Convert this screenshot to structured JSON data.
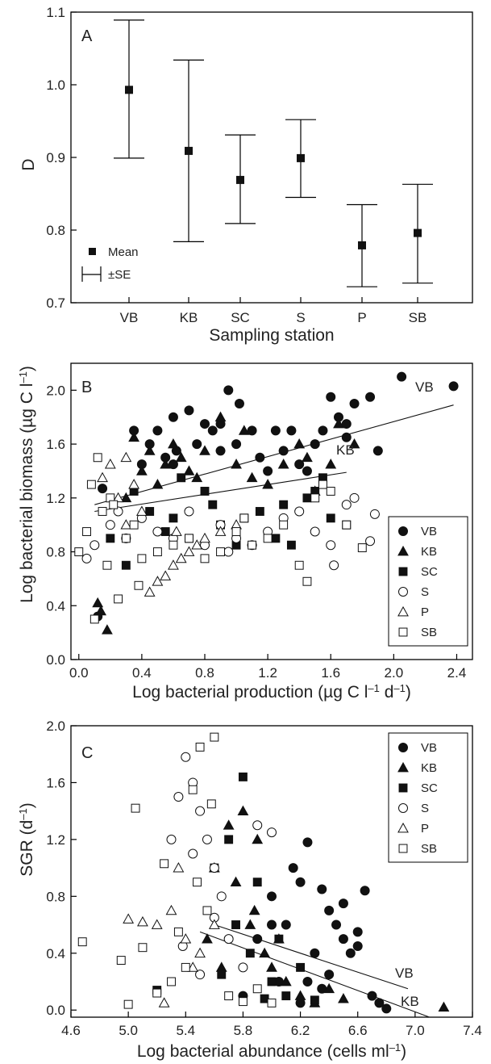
{
  "chart_data": [
    {
      "type": "errorbar",
      "panel": "A",
      "xlabel": "Sampling station",
      "ylabel": "D",
      "ylim": [
        0.7,
        1.1
      ],
      "yticks": [
        "0.7",
        "0.8",
        "0.9",
        "1.0",
        "1.1"
      ],
      "categories": [
        "VB",
        "KB",
        "SC",
        "S",
        "P",
        "SB"
      ],
      "means": [
        0.993,
        0.909,
        0.869,
        0.899,
        0.779,
        0.796
      ],
      "lower": [
        0.899,
        0.784,
        0.809,
        0.845,
        0.722,
        0.727
      ],
      "upper": [
        1.089,
        1.034,
        0.931,
        0.952,
        0.835,
        0.863
      ],
      "legend": {
        "mean": "Mean",
        "se": "±SE"
      }
    },
    {
      "type": "scatter",
      "panel": "B",
      "xlabel_pre": "Log bacterial production (µg C l",
      "xlabel_sup1": "–1",
      "xlabel_mid": " d",
      "xlabel_sup2": "–1",
      "xlabel_post": ")",
      "ylabel_pre": "Log bacterial biomass (µg C l",
      "ylabel_sup": "–1",
      "ylabel_post": ")",
      "xlim": [
        -0.05,
        2.5
      ],
      "ylim": [
        0.0,
        2.2
      ],
      "xticks": [
        "0.0",
        "0.4",
        "0.8",
        "1.2",
        "1.6",
        "2.0",
        "2.4"
      ],
      "yticks": [
        "0.0",
        "0.4",
        "0.8",
        "1.2",
        "1.6",
        "2.0"
      ],
      "legend": [
        "VB",
        "KB",
        "SC",
        "S",
        "P",
        "SB"
      ],
      "regression_lines": [
        {
          "name": "VB",
          "x": [
            0.1,
            2.38
          ],
          "y": [
            1.15,
            1.89
          ]
        },
        {
          "name": "KB",
          "x": [
            0.1,
            1.7
          ],
          "y": [
            1.1,
            1.39
          ]
        }
      ],
      "series": [
        {
          "name": "VB",
          "x": [
            0.12,
            0.15,
            0.35,
            0.45,
            0.5,
            0.55,
            0.6,
            0.62,
            0.7,
            0.75,
            0.8,
            0.85,
            0.9,
            0.95,
            1.0,
            1.02,
            1.1,
            1.15,
            1.25,
            1.3,
            1.35,
            1.4,
            1.5,
            1.55,
            1.6,
            1.65,
            1.7,
            1.75,
            1.85,
            1.9,
            2.05,
            2.38,
            0.4,
            0.6,
            0.9,
            1.2,
            1.45,
            1.7
          ],
          "y": [
            0.32,
            1.27,
            1.7,
            1.6,
            1.7,
            1.5,
            1.8,
            1.55,
            1.85,
            1.6,
            1.75,
            1.7,
            1.75,
            2.0,
            1.6,
            1.9,
            1.7,
            1.5,
            1.7,
            1.55,
            1.7,
            1.45,
            1.6,
            1.7,
            1.95,
            1.8,
            1.65,
            1.9,
            1.95,
            1.55,
            2.1,
            2.03,
            1.45,
            1.45,
            1.55,
            1.4,
            1.4,
            1.75
          ]
        },
        {
          "name": "KB",
          "x": [
            0.12,
            0.14,
            0.18,
            0.3,
            0.4,
            0.45,
            0.5,
            0.55,
            0.6,
            0.65,
            0.7,
            0.8,
            0.9,
            1.0,
            1.1,
            1.2,
            1.3,
            1.4,
            1.5,
            1.6,
            1.65,
            1.75,
            0.35,
            0.75,
            1.05,
            1.45
          ],
          "y": [
            0.42,
            0.36,
            0.22,
            1.2,
            1.4,
            1.55,
            1.3,
            1.45,
            1.6,
            1.5,
            1.4,
            1.55,
            1.8,
            1.45,
            1.35,
            1.3,
            1.45,
            1.6,
            1.25,
            1.45,
            1.75,
            1.6,
            1.65,
            1.35,
            1.7,
            1.5
          ]
        },
        {
          "name": "SC",
          "x": [
            0.2,
            0.35,
            0.45,
            0.55,
            0.6,
            0.65,
            0.7,
            0.8,
            0.9,
            1.0,
            1.05,
            1.15,
            1.25,
            1.35,
            1.45,
            1.5,
            1.55,
            1.6,
            1.7,
            0.3,
            0.85,
            1.3
          ],
          "y": [
            0.9,
            1.25,
            1.1,
            0.95,
            1.05,
            1.35,
            0.9,
            1.25,
            1.0,
            0.85,
            1.05,
            1.1,
            0.9,
            0.85,
            1.2,
            1.25,
            1.35,
            1.05,
            1.0,
            0.7,
            1.15,
            1.15
          ]
        },
        {
          "name": "S",
          "x": [
            0.05,
            0.1,
            0.2,
            0.3,
            0.4,
            0.5,
            0.6,
            0.7,
            0.8,
            0.9,
            1.0,
            1.1,
            1.2,
            1.3,
            1.4,
            1.5,
            1.6,
            1.7,
            1.75,
            1.85,
            1.88,
            1.62,
            0.25,
            0.95
          ],
          "y": [
            0.75,
            0.85,
            1.0,
            0.9,
            1.05,
            0.95,
            0.9,
            1.1,
            0.85,
            1.0,
            0.9,
            0.85,
            0.95,
            1.05,
            1.1,
            0.95,
            0.85,
            1.15,
            1.2,
            0.88,
            1.08,
            0.7,
            1.1,
            0.8
          ]
        },
        {
          "name": "P",
          "x": [
            0.15,
            0.2,
            0.25,
            0.3,
            0.35,
            0.45,
            0.5,
            0.55,
            0.6,
            0.65,
            0.7,
            0.75,
            0.8,
            0.9,
            1.0,
            0.4,
            0.3,
            0.62
          ],
          "y": [
            1.35,
            1.45,
            1.2,
            1.5,
            1.3,
            0.5,
            0.58,
            0.62,
            0.7,
            0.75,
            0.8,
            0.85,
            0.9,
            0.95,
            1.0,
            1.1,
            1.0,
            0.95
          ]
        },
        {
          "name": "SB",
          "x": [
            0.0,
            0.05,
            0.08,
            0.1,
            0.15,
            0.18,
            0.2,
            0.25,
            0.3,
            0.35,
            0.4,
            0.5,
            0.6,
            0.7,
            0.8,
            0.9,
            1.0,
            1.1,
            1.2,
            1.3,
            1.4,
            1.45,
            1.5,
            1.55,
            1.6,
            1.7,
            1.8,
            0.12,
            0.22,
            0.38,
            1.05
          ],
          "y": [
            0.8,
            0.95,
            1.3,
            0.3,
            1.1,
            0.7,
            1.2,
            0.45,
            0.9,
            1.0,
            0.75,
            0.8,
            0.85,
            0.9,
            0.75,
            0.8,
            0.95,
            0.85,
            0.9,
            1.0,
            0.7,
            0.58,
            1.2,
            1.3,
            1.25,
            1.0,
            0.83,
            1.5,
            1.15,
            0.55,
            1.05
          ]
        }
      ]
    },
    {
      "type": "scatter",
      "panel": "C",
      "xlabel_pre": "Log bacterial abundance (cells ml",
      "xlabel_sup": "–1",
      "xlabel_post": ")",
      "ylabel_pre": "SGR (d",
      "ylabel_sup": "–1",
      "ylabel_post": ")",
      "xlim": [
        4.6,
        7.4
      ],
      "ylim": [
        -0.05,
        2.0
      ],
      "xticks": [
        "4.6",
        "5.0",
        "5.4",
        "5.8",
        "6.2",
        "6.6",
        "7.0",
        "7.4"
      ],
      "yticks": [
        "0.0",
        "0.4",
        "0.8",
        "1.2",
        "1.6",
        "2.0"
      ],
      "legend": [
        "VB",
        "KB",
        "SC",
        "S",
        "P",
        "SB"
      ],
      "regression_lines": [
        {
          "name": "VB",
          "x": [
            5.6,
            6.95
          ],
          "y": [
            0.6,
            0.15
          ]
        },
        {
          "name": "KB",
          "x": [
            5.5,
            7.1
          ],
          "y": [
            0.55,
            -0.05
          ]
        }
      ],
      "series": [
        {
          "name": "VB",
          "x": [
            5.8,
            5.9,
            6.0,
            6.05,
            6.1,
            6.15,
            6.2,
            6.25,
            6.3,
            6.35,
            6.4,
            6.45,
            6.5,
            6.55,
            6.6,
            6.65,
            6.7,
            6.75,
            6.8,
            6.25,
            6.35,
            6.5,
            6.0,
            6.2,
            6.4,
            6.6
          ],
          "y": [
            0.1,
            0.5,
            0.8,
            0.2,
            0.6,
            1.0,
            0.9,
            1.18,
            0.4,
            0.85,
            0.7,
            0.6,
            0.75,
            0.4,
            0.55,
            0.84,
            0.1,
            0.05,
            0.01,
            0.2,
            0.15,
            0.5,
            0.6,
            0.05,
            0.25,
            0.45
          ]
        },
        {
          "name": "KB",
          "x": [
            5.55,
            5.6,
            5.7,
            5.75,
            5.8,
            5.85,
            5.9,
            5.95,
            6.0,
            6.1,
            6.2,
            6.3,
            6.4,
            6.5,
            7.2,
            5.65,
            5.88,
            6.05
          ],
          "y": [
            0.5,
            1.0,
            1.3,
            0.9,
            1.4,
            0.6,
            1.2,
            0.4,
            0.3,
            0.2,
            0.1,
            0.05,
            0.15,
            0.08,
            0.02,
            0.3,
            0.7,
            0.5
          ]
        },
        {
          "name": "SC",
          "x": [
            5.2,
            5.6,
            5.7,
            5.75,
            5.8,
            5.85,
            5.9,
            6.0,
            6.05,
            6.1,
            6.2,
            6.3,
            5.65,
            5.95
          ],
          "y": [
            0.14,
            1.0,
            1.2,
            0.6,
            1.64,
            0.4,
            0.9,
            0.2,
            0.5,
            0.1,
            0.3,
            0.07,
            0.25,
            0.08
          ]
        },
        {
          "name": "S",
          "x": [
            5.3,
            5.35,
            5.4,
            5.45,
            5.5,
            5.55,
            5.6,
            5.65,
            5.7,
            5.8,
            5.9,
            6.0,
            5.45,
            5.5,
            5.38,
            5.6
          ],
          "y": [
            1.2,
            1.5,
            1.78,
            1.6,
            1.4,
            1.2,
            1.0,
            0.8,
            0.5,
            0.3,
            1.3,
            1.25,
            1.1,
            0.25,
            0.45,
            0.65
          ]
        },
        {
          "name": "P",
          "x": [
            5.0,
            5.1,
            5.2,
            5.3,
            5.4,
            5.5,
            5.6,
            5.25,
            5.45,
            5.35
          ],
          "y": [
            0.64,
            0.62,
            0.6,
            0.7,
            0.5,
            0.4,
            0.6,
            0.05,
            0.3,
            1.0
          ]
        },
        {
          "name": "SB",
          "x": [
            4.68,
            4.95,
            5.0,
            5.05,
            5.1,
            5.2,
            5.25,
            5.3,
            5.4,
            5.45,
            5.5,
            5.55,
            5.6,
            5.7,
            5.8,
            5.9,
            6.0,
            5.35,
            5.58,
            5.48
          ],
          "y": [
            0.48,
            0.35,
            0.04,
            1.42,
            0.44,
            0.12,
            1.03,
            0.2,
            0.3,
            1.55,
            1.85,
            0.7,
            1.92,
            0.1,
            0.06,
            0.15,
            0.05,
            0.55,
            1.45,
            0.9
          ]
        }
      ]
    }
  ]
}
